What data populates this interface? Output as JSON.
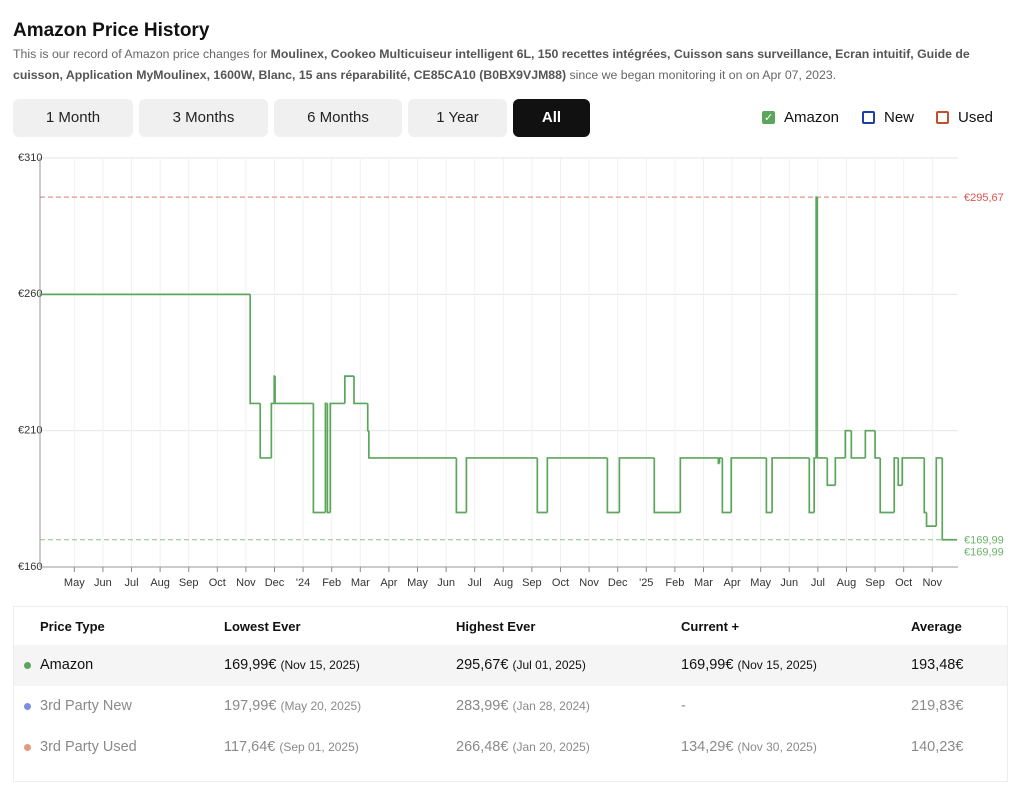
{
  "header": {
    "title": "Amazon Price History",
    "description": {
      "prefix": "This is our record of Amazon price changes for ",
      "product": "Moulinex, Cookeo Multicuiseur intelligent 6L, 150 recettes intégrées, Cuisson sans surveillance, Ecran intuitif, Guide de cuisson, Application MyMoulinex, 1600W, Blanc, 15 ans réparabilité, CE85CA10 (B0BX9VJM88)",
      "suffix": " since we began monitoring it on on Apr 07, 2023."
    }
  },
  "tabs": {
    "items": [
      "1 Month",
      "3 Months",
      "6 Months",
      "1 Year",
      "All"
    ],
    "active": 4
  },
  "chart_data": {
    "type": "step-line",
    "xlim": [
      -1.2,
      30.9
    ],
    "xticks": [
      {
        "value": 0,
        "label": "May"
      },
      {
        "value": 1,
        "label": "Jun"
      },
      {
        "value": 2,
        "label": "Jul"
      },
      {
        "value": 3,
        "label": "Aug"
      },
      {
        "value": 4,
        "label": "Sep"
      },
      {
        "value": 5,
        "label": "Oct"
      },
      {
        "value": 6,
        "label": "Nov"
      },
      {
        "value": 7,
        "label": "Dec"
      },
      {
        "value": 8,
        "label": "'24"
      },
      {
        "value": 9,
        "label": "Feb"
      },
      {
        "value": 10,
        "label": "Mar"
      },
      {
        "value": 11,
        "label": "Apr"
      },
      {
        "value": 12,
        "label": "May"
      },
      {
        "value": 13,
        "label": "Jun"
      },
      {
        "value": 14,
        "label": "Jul"
      },
      {
        "value": 15,
        "label": "Aug"
      },
      {
        "value": 16,
        "label": "Sep"
      },
      {
        "value": 17,
        "label": "Oct"
      },
      {
        "value": 18,
        "label": "Nov"
      },
      {
        "value": 19,
        "label": "Dec"
      },
      {
        "value": 20,
        "label": "'25"
      },
      {
        "value": 21,
        "label": "Feb"
      },
      {
        "value": 22,
        "label": "Mar"
      },
      {
        "value": 23,
        "label": "Apr"
      },
      {
        "value": 24,
        "label": "May"
      },
      {
        "value": 25,
        "label": "Jun"
      },
      {
        "value": 26,
        "label": "Jul"
      },
      {
        "value": 27,
        "label": "Aug"
      },
      {
        "value": 28,
        "label": "Sep"
      },
      {
        "value": 29,
        "label": "Oct"
      },
      {
        "value": 30,
        "label": "Nov"
      }
    ],
    "ylim": [
      160,
      310
    ],
    "yticks": [
      {
        "value": 310,
        "label": "€310"
      },
      {
        "value": 260,
        "label": "€260"
      },
      {
        "value": 210,
        "label": "€210"
      },
      {
        "value": 160,
        "label": "€160"
      }
    ],
    "grid": true,
    "x": [
      -1.2,
      6.15,
      6.5,
      6.89,
      6.99,
      7.02,
      8.36,
      8.78,
      8.85,
      8.95,
      9.46,
      9.78,
      10.26,
      10.3,
      13.36,
      13.71,
      16.19,
      16.54,
      18.64,
      19.06,
      20.28,
      21.19,
      22.52,
      22.56,
      22.66,
      22.97,
      24.2,
      24.4,
      25.7,
      25.87,
      25.94,
      25.98,
      26.33,
      26.61,
      26.96,
      27.17,
      27.66,
      28.0,
      28.18,
      28.67,
      28.81,
      28.95,
      29.72,
      29.8,
      30.14,
      30.35,
      30.87
    ],
    "series": [
      {
        "name": "Amazon",
        "color": "#5ca65c",
        "checked": true,
        "values": [
          259.99,
          219.99,
          199.99,
          219.99,
          229.99,
          219.99,
          179.99,
          219.99,
          179.99,
          219.99,
          229.99,
          219.99,
          209.99,
          199.99,
          179.99,
          199.99,
          179.99,
          199.99,
          179.99,
          199.99,
          179.99,
          199.99,
          197.99,
          199.99,
          179.99,
          199.99,
          179.99,
          199.99,
          179.99,
          199.99,
          295.67,
          199.99,
          189.99,
          199.99,
          209.99,
          199.99,
          209.99,
          199.99,
          179.99,
          199.99,
          189.99,
          199.99,
          179.99,
          174.99,
          199.99,
          169.99,
          169.99
        ]
      }
    ],
    "toggles": [
      {
        "name": "New",
        "color": "#1f3fa8",
        "checked": false
      },
      {
        "name": "Used",
        "color": "#c0502e",
        "checked": false
      }
    ],
    "reference_lines": [
      {
        "value": 295.67,
        "label": "€295,67",
        "color": "#d9534f"
      },
      {
        "value": 169.99,
        "label": "€169,99",
        "color": "#6ab46a"
      }
    ],
    "annotations": [
      {
        "value": 169.99,
        "label": "€169,99",
        "color": "#6ab46a"
      }
    ]
  },
  "table": {
    "headers": [
      "Price Type",
      "Lowest Ever",
      "Highest Ever",
      "Current +",
      "Average"
    ],
    "rows": [
      {
        "type": "Amazon",
        "dot": "#5ca65c",
        "lowest": {
          "price": "169,99€",
          "date": "(Nov 15, 2025)"
        },
        "highest": {
          "price": "295,67€",
          "date": "(Jul 01, 2025)"
        },
        "current": {
          "price": "169,99€",
          "date": "(Nov 15, 2025)"
        },
        "average": "193,48€"
      },
      {
        "type": "3rd Party New",
        "dot": "#7b8fe0",
        "lowest": {
          "price": "197,99€",
          "date": "(May 20, 2025)"
        },
        "highest": {
          "price": "283,99€",
          "date": "(Jan 28, 2024)"
        },
        "current": {
          "price": "-"
        },
        "average": "219,83€"
      },
      {
        "type": "3rd Party Used",
        "dot": "#e59a7c",
        "lowest": {
          "price": "117,64€",
          "date": "(Sep 01, 2025)"
        },
        "highest": {
          "price": "266,48€",
          "date": "(Jan 20, 2025)"
        },
        "current": {
          "price": "134,29€",
          "date": "(Nov 30, 2025)"
        },
        "average": "140,23€"
      }
    ]
  }
}
